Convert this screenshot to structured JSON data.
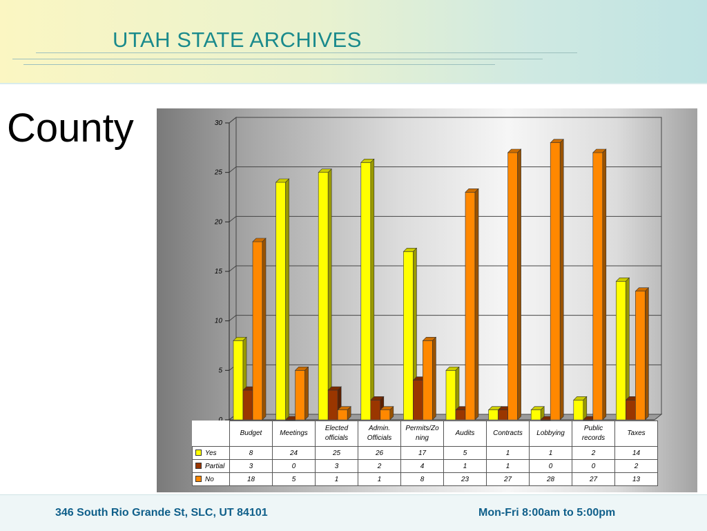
{
  "header": {
    "title": "UTAH STATE ARCHIVES"
  },
  "page": {
    "heading": "County"
  },
  "footer": {
    "address": "346 South Rio Grande St, SLC, UT 84101",
    "hours": "Mon-Fri 8:00am to 5:00pm"
  },
  "colors": {
    "yes": "#ffff00",
    "partial": "#9a3600",
    "no": "#ff8800",
    "title": "#1a8a8c",
    "footer_text": "#0f5f8a"
  },
  "chart_data": {
    "type": "bar",
    "categories": [
      "Budget",
      "Meetings",
      "Elected officials",
      "Admin. Officials",
      "Permits/Zoning",
      "Audits",
      "Contracts",
      "Lobbying",
      "Public records",
      "Taxes"
    ],
    "table_headers": [
      [
        "Budget"
      ],
      [
        "Meetings"
      ],
      [
        "Elected",
        "officials"
      ],
      [
        "Admin.",
        "Officials"
      ],
      [
        "Permits/Zo",
        "ning"
      ],
      [
        "Audits"
      ],
      [
        "Contracts"
      ],
      [
        "Lobbying"
      ],
      [
        "Public",
        "records"
      ],
      [
        "Taxes"
      ]
    ],
    "series": [
      {
        "name": "Yes",
        "color": "#ffff00",
        "values": [
          8,
          24,
          25,
          26,
          17,
          5,
          1,
          1,
          2,
          14
        ]
      },
      {
        "name": "Partial",
        "color": "#9a3600",
        "values": [
          3,
          0,
          3,
          2,
          4,
          1,
          1,
          0,
          0,
          2
        ]
      },
      {
        "name": "No",
        "color": "#ff8800",
        "values": [
          18,
          5,
          1,
          1,
          8,
          23,
          27,
          28,
          27,
          13
        ]
      }
    ],
    "yticks": [
      0,
      5,
      10,
      15,
      20,
      25,
      30
    ],
    "ylim": [
      0,
      30
    ],
    "grid": true,
    "legend": "data table below chart"
  }
}
